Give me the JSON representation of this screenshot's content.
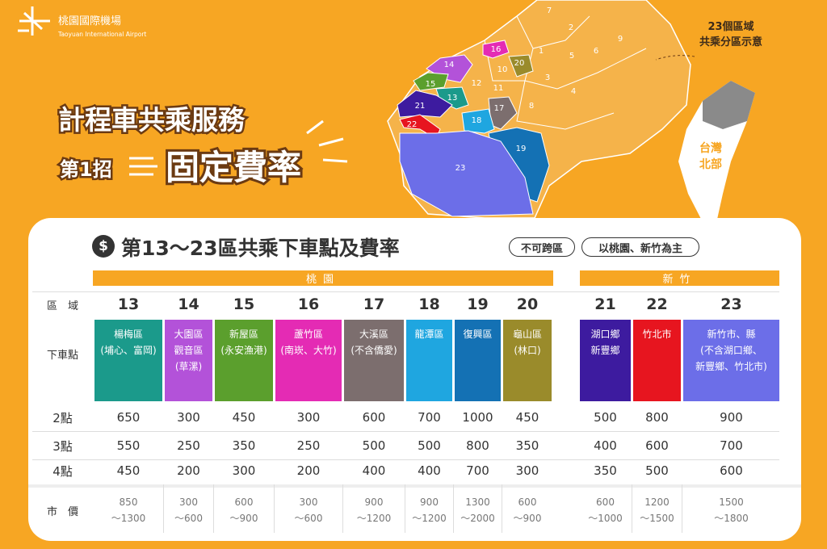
{
  "header": {
    "logo_name": "桃園國際機場",
    "logo_en": "Taoyuan International Airport",
    "title": "計程車共乘服務",
    "step": "第1招",
    "subtitle": "固定費率"
  },
  "map": {
    "note_line1": "23個區域",
    "note_line2": "共乘分區示意",
    "inset_line1": "台灣",
    "inset_line2": "北部",
    "regions": [
      "1",
      "2",
      "3",
      "4",
      "5",
      "6",
      "7",
      "8",
      "9",
      "10",
      "11",
      "12",
      "13",
      "14",
      "15",
      "16",
      "17",
      "18",
      "19",
      "20",
      "21",
      "22",
      "23"
    ]
  },
  "table": {
    "icon": "$",
    "title": "第13～23區共乘下車點及費率",
    "tags": [
      "不可跨區",
      "以桃園、新竹為主"
    ],
    "groups": [
      "桃園",
      "新竹"
    ],
    "row_labels": {
      "zone": "區　域",
      "dropoff": "下車點",
      "fares": [
        "2點",
        "3點",
        "4點"
      ],
      "market": "市　價"
    },
    "zones": [
      {
        "zone": "13",
        "color": "#1b9a8b",
        "dropoff": [
          "楊梅區",
          "(埔心、富岡)"
        ],
        "fares": [
          "650",
          "550",
          "450"
        ],
        "market": [
          "850",
          "～1300"
        ]
      },
      {
        "zone": "14",
        "color": "#b352d9",
        "dropoff": [
          "大園區",
          "觀音區",
          "(草漯)"
        ],
        "fares": [
          "300",
          "250",
          "200"
        ],
        "market": [
          "300",
          "～600"
        ]
      },
      {
        "zone": "15",
        "color": "#5b9f2d",
        "dropoff": [
          "新屋區",
          "(永安漁港)"
        ],
        "fares": [
          "450",
          "350",
          "300"
        ],
        "market": [
          "600",
          "～900"
        ]
      },
      {
        "zone": "16",
        "color": "#e42bb4",
        "dropoff": [
          "蘆竹區",
          "(南崁、大竹)"
        ],
        "fares": [
          "300",
          "250",
          "200"
        ],
        "market": [
          "300",
          "～600"
        ]
      },
      {
        "zone": "17",
        "color": "#7c6e6e",
        "dropoff": [
          "大溪區",
          "(不含僑愛)"
        ],
        "fares": [
          "600",
          "500",
          "400"
        ],
        "market": [
          "900",
          "～1200"
        ]
      },
      {
        "zone": "18",
        "color": "#1fa6e0",
        "dropoff": [
          "龍潭區"
        ],
        "fares": [
          "700",
          "500",
          "400"
        ],
        "market": [
          "900",
          "～1200"
        ]
      },
      {
        "zone": "19",
        "color": "#1471b4",
        "dropoff": [
          "復興區"
        ],
        "fares": [
          "1000",
          "800",
          "700"
        ],
        "market": [
          "1300",
          "～2000"
        ]
      },
      {
        "zone": "20",
        "color": "#9a8b2b",
        "dropoff": [
          "龜山區",
          "(林口)"
        ],
        "fares": [
          "450",
          "350",
          "300"
        ],
        "market": [
          "600",
          "～900"
        ]
      },
      {
        "zone": "21",
        "color": "#3d1b9f",
        "dropoff": [
          "湖口鄉",
          "新豐鄉"
        ],
        "fares": [
          "500",
          "400",
          "350"
        ],
        "market": [
          "600",
          "～1000"
        ]
      },
      {
        "zone": "22",
        "color": "#e7151f",
        "dropoff": [
          "竹北市"
        ],
        "fares": [
          "800",
          "600",
          "500"
        ],
        "market": [
          "1200",
          "～1500"
        ]
      },
      {
        "zone": "23",
        "color": "#6c6ee8",
        "dropoff": [
          "新竹市、縣",
          "(不含湖口鄉、",
          "新豐鄉、竹北市)"
        ],
        "fares": [
          "900",
          "700",
          "600"
        ],
        "market": [
          "1500",
          "～1800"
        ]
      }
    ]
  }
}
